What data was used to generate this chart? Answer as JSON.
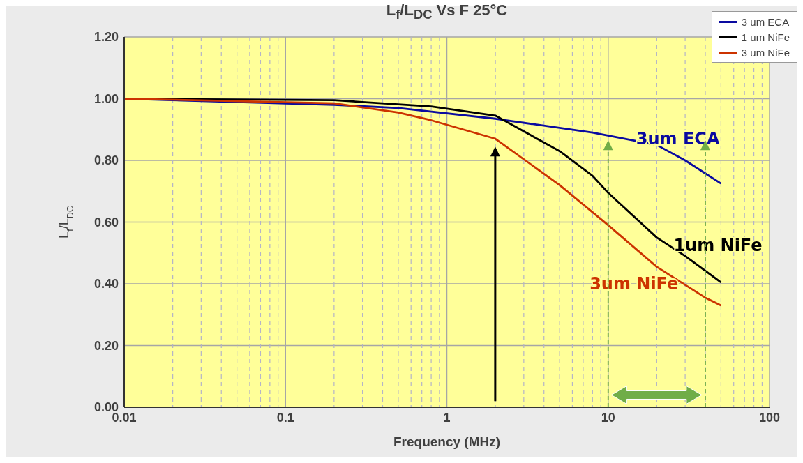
{
  "chart_data": {
    "type": "line",
    "title": "L$_{f}$/L$_{DC}$ Vs F 25°C",
    "xlabel": "Frequency (MHz)",
    "ylabel": "L$_{f}$/L$_{DC}$",
    "series": [
      {
        "name": "3 um ECA",
        "color": "#0a0aa0",
        "x": [
          0.01,
          0.2,
          0.5,
          2,
          8,
          20,
          30,
          50
        ],
        "values": [
          1.0,
          0.98,
          0.97,
          0.935,
          0.89,
          0.85,
          0.8,
          0.725
        ]
      },
      {
        "name": "1 um NiFe",
        "color": "#000000",
        "x": [
          0.01,
          0.2,
          0.8,
          2,
          5,
          8,
          10,
          20,
          30,
          50
        ],
        "values": [
          1.0,
          0.995,
          0.975,
          0.945,
          0.83,
          0.75,
          0.695,
          0.55,
          0.49,
          0.405
        ]
      },
      {
        "name": "3 um NiFe",
        "color": "#cc3300",
        "x": [
          0.01,
          0.2,
          0.5,
          0.8,
          2,
          5,
          10,
          20,
          40,
          50
        ],
        "values": [
          1.0,
          0.985,
          0.955,
          0.93,
          0.87,
          0.72,
          0.59,
          0.455,
          0.355,
          0.33
        ]
      }
    ],
    "annotations": [
      "3um ECA",
      "1um NiFe",
      "3um NiFe"
    ],
    "log": "x",
    "xlim": [
      0.01,
      100
    ],
    "xticks": [
      0.01,
      0.1,
      1,
      10,
      100
    ],
    "ylim": [
      0,
      1.2
    ],
    "yticks": [
      {
        "value": 0,
        "label": "0.00"
      },
      {
        "value": 0.2,
        "label": "0.20"
      },
      {
        "value": 0.4,
        "label": "0.40"
      },
      {
        "value": 0.6,
        "label": "0.60"
      },
      {
        "value": 0.8,
        "label": "0.80"
      },
      {
        "value": 1.0,
        "label": "1.00"
      },
      {
        "value": 1.2,
        "label": "1.20"
      }
    ],
    "grid": true,
    "legend": "top right",
    "marker": "none",
    "line_style": "solid"
  }
}
